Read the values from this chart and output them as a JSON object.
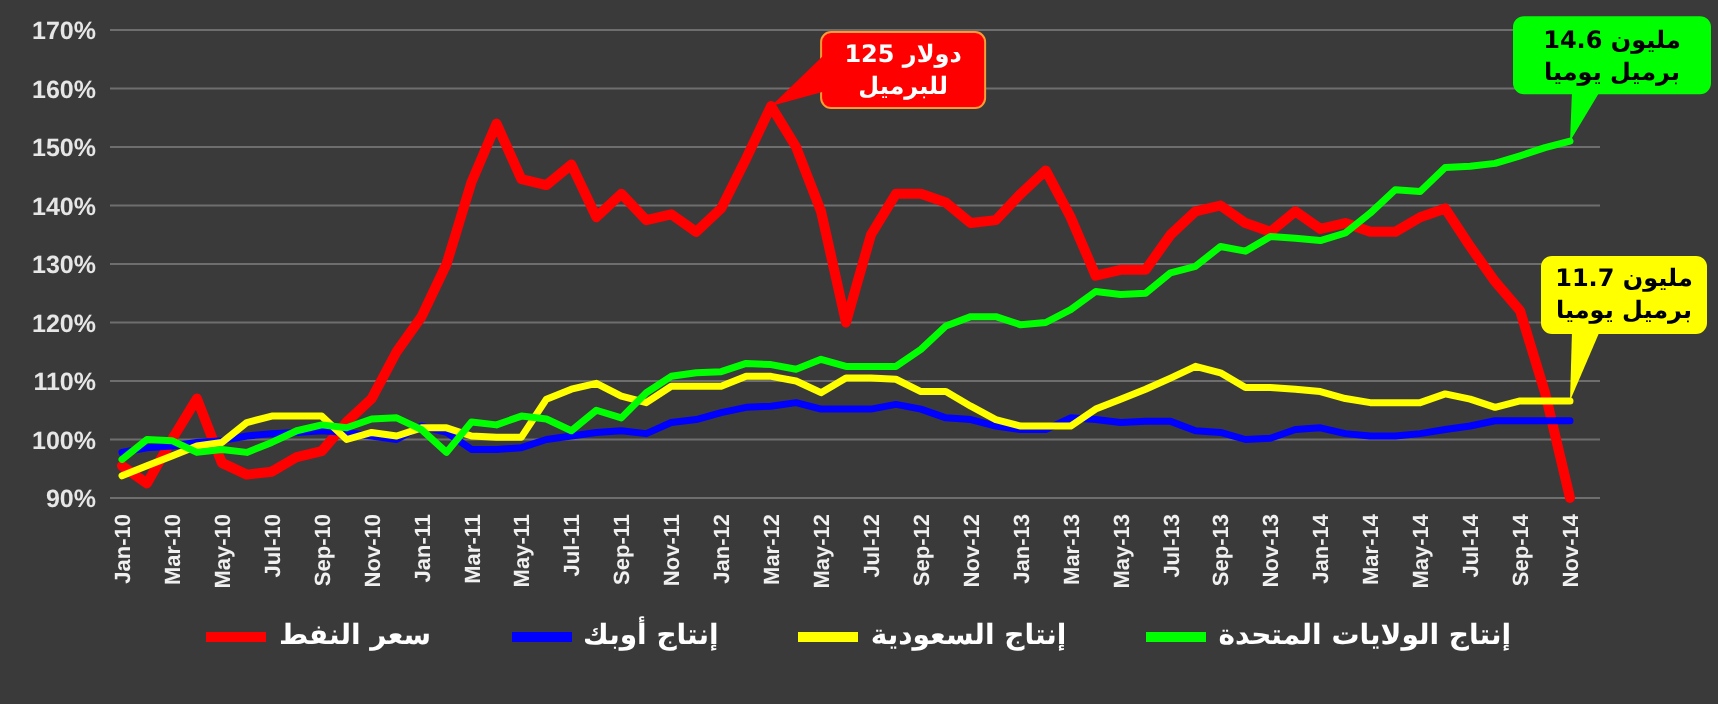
{
  "chart_data": {
    "type": "line",
    "categories": [
      "Jan-10",
      null,
      "Mar-10",
      null,
      "May-10",
      null,
      "Jul-10",
      null,
      "Sep-10",
      null,
      "Nov-10",
      null,
      "Jan-11",
      null,
      "Mar-11",
      null,
      "May-11",
      null,
      "Jul-11",
      null,
      "Sep-11",
      null,
      "Nov-11",
      null,
      "Jan-12",
      null,
      "Mar-12",
      null,
      "May-12",
      null,
      "Jul-12",
      null,
      "Sep-12",
      null,
      "Nov-12",
      null,
      "Jan-13",
      null,
      "Mar-13",
      null,
      "May-13",
      null,
      "Jul-13",
      null,
      "Sep-13",
      null,
      "Nov-13",
      null,
      "Jan-14",
      null,
      "Mar-14",
      null,
      "May-14",
      null,
      "Jul-14",
      null,
      "Sep-14",
      null,
      "Nov-14"
    ],
    "series": [
      {
        "name": "سعر النفط",
        "color": "#ff0000",
        "values": [
          95.5,
          92.5,
          100,
          107,
          96,
          94,
          94.5,
          97,
          98,
          103,
          107,
          115,
          121,
          130,
          144,
          154,
          144.5,
          143.5,
          147,
          138,
          142,
          137.5,
          138.5,
          135.5,
          139.5,
          148,
          157,
          150,
          139,
          120,
          135,
          142,
          142,
          140.5,
          137,
          137.5,
          142,
          146,
          138,
          128,
          129,
          129,
          135,
          139,
          140,
          137,
          135.5,
          139,
          136,
          137,
          135.5,
          135.5,
          138,
          139.5,
          133,
          127,
          122,
          108,
          90
        ]
      },
      {
        "name": "إنتاج أوبك",
        "color": "#0000ff",
        "values": [
          97.8,
          98.6,
          98.9,
          99.5,
          99.8,
          100.6,
          101,
          101.2,
          101.5,
          101.2,
          100.6,
          100,
          102.3,
          101.2,
          98.3,
          98.3,
          98.6,
          100,
          100.6,
          101.2,
          101.5,
          101,
          102.9,
          103.4,
          104.6,
          105.5,
          105.7,
          106.3,
          105.2,
          105.2,
          105.2,
          106,
          105.2,
          103.7,
          103.4,
          102.3,
          101.7,
          101.7,
          103.7,
          103.4,
          102.9,
          103.1,
          103.1,
          101.5,
          101.2,
          100,
          100.2,
          101.7,
          102,
          101,
          100.6,
          100.6,
          101,
          101.7,
          102.3,
          103.2,
          103.2,
          103.2,
          103.2
        ]
      },
      {
        "name": "إنتاج السعودية",
        "color": "#ffff00",
        "values": [
          93.8,
          95.5,
          97.2,
          98.9,
          99.5,
          102.9,
          104,
          104,
          104,
          100,
          101.2,
          100.6,
          102,
          102,
          100.6,
          100.4,
          100.4,
          106.9,
          108.6,
          109.6,
          107.4,
          106.3,
          109.1,
          109.1,
          109.1,
          110.8,
          110.8,
          110,
          108,
          110.5,
          110.5,
          110.3,
          108.2,
          108.2,
          105.7,
          103.4,
          102.3,
          102.3,
          102.3,
          105.2,
          106.9,
          108.6,
          110.5,
          112.5,
          111.4,
          108.9,
          108.9,
          108.6,
          108.2,
          107,
          106.3,
          106.3,
          106.3,
          107.8,
          106.9,
          105.5,
          106.6,
          106.6,
          106.6
        ]
      },
      {
        "name": "إنتاج الولايات المتحدة",
        "color": "#00ff00",
        "values": [
          96.6,
          100,
          99.8,
          97.8,
          98.3,
          97.8,
          99.5,
          101.5,
          102.5,
          102,
          103.5,
          103.7,
          101.7,
          97.8,
          103,
          102.5,
          104,
          103.5,
          101.5,
          105,
          103.7,
          108,
          110.8,
          111.4,
          111.6,
          113,
          112.8,
          112,
          113.7,
          112.5,
          112.5,
          112.5,
          115.4,
          119.4,
          121,
          121,
          119.6,
          120,
          122.2,
          125.3,
          124.8,
          125,
          128.5,
          129.6,
          133,
          132.2,
          134.7,
          134.4,
          134,
          135.3,
          138.7,
          142.7,
          142.4,
          146.5,
          146.7,
          147.2,
          148.5,
          149.9,
          151
        ]
      }
    ],
    "ylim": [
      90,
      170
    ],
    "yticks": [
      {
        "value": 90,
        "label": "90%"
      },
      {
        "value": 100,
        "label": "100%"
      },
      {
        "value": 110,
        "label": "110%"
      },
      {
        "value": 120,
        "label": "120%"
      },
      {
        "value": 130,
        "label": "130%"
      },
      {
        "value": 140,
        "label": "140%"
      },
      {
        "value": 150,
        "label": "150%"
      },
      {
        "value": 160,
        "label": "160%"
      },
      {
        "value": 170,
        "label": "170%"
      }
    ],
    "grid": "y",
    "legend": "bottom",
    "annotations": [
      {
        "text": "125 دولار للبرميل",
        "x": "Mar-12",
        "y": 157
      },
      {
        "text": "14.6 مليون برميل يوميا",
        "x": "Nov-14",
        "y": 151
      },
      {
        "text": "11.7 مليون برميل يوميا",
        "x": "Nov-14",
        "y": 106.6
      }
    ]
  }
}
